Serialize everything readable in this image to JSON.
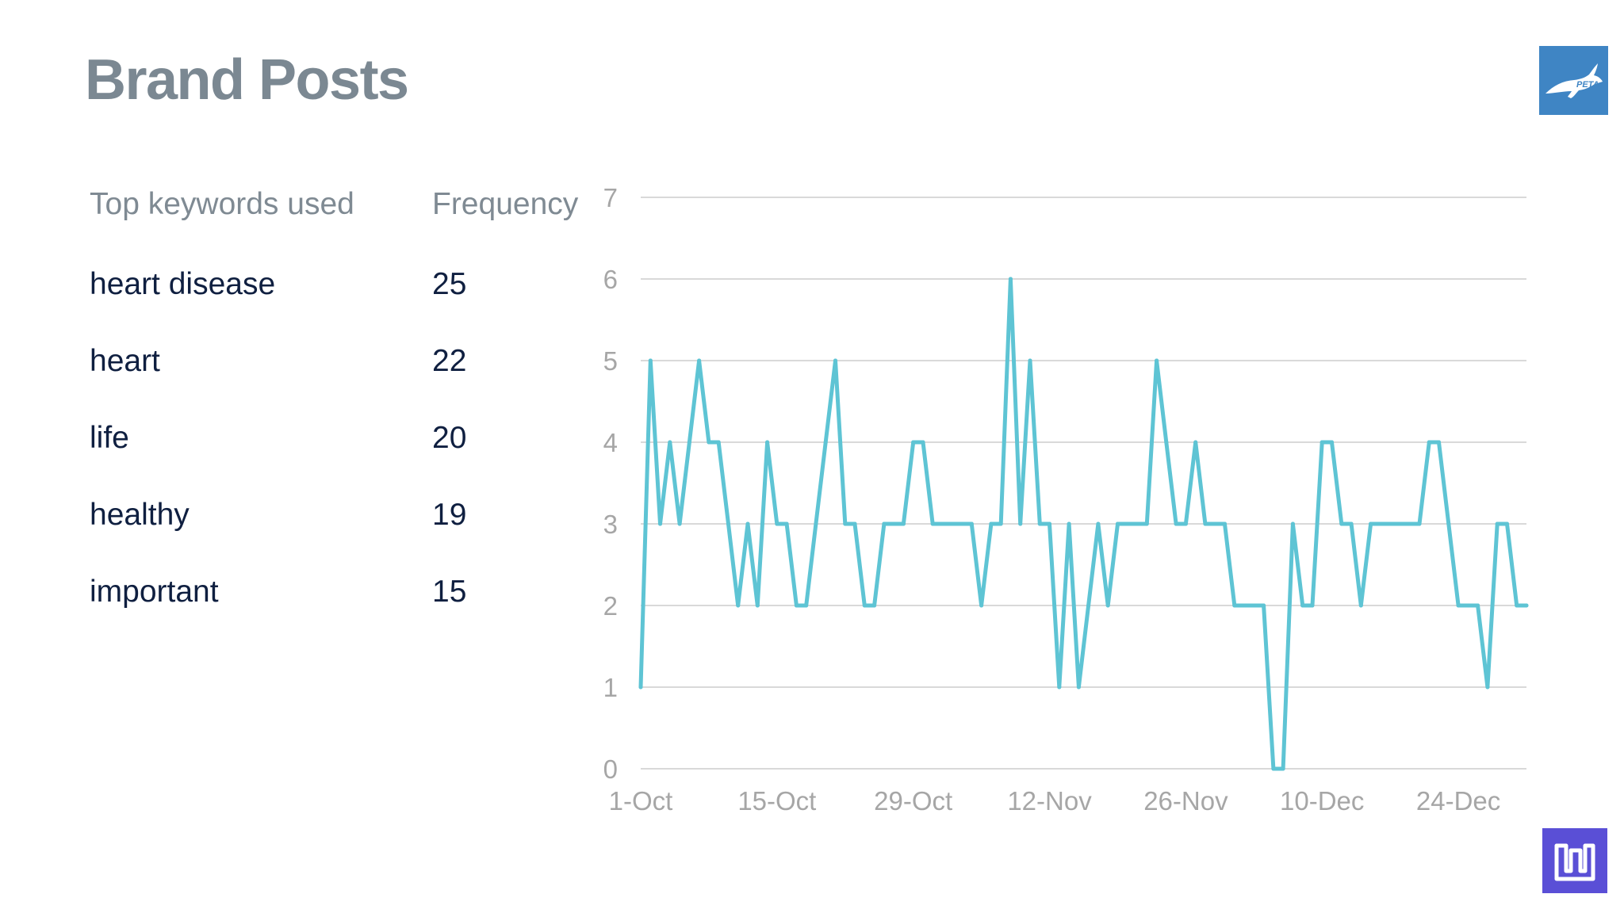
{
  "slide": {
    "title": "Brand Posts"
  },
  "keywords_table": {
    "header_keyword": "Top keywords used",
    "header_frequency": "Frequency",
    "rows": [
      {
        "keyword": "heart disease",
        "frequency": "25"
      },
      {
        "keyword": "heart",
        "frequency": "22"
      },
      {
        "keyword": "life",
        "frequency": "20"
      },
      {
        "keyword": "healthy",
        "frequency": "19"
      },
      {
        "keyword": "important",
        "frequency": "15"
      }
    ]
  },
  "logos": {
    "top_right_text": "PETA"
  },
  "colors": {
    "line": "#5ec4d4",
    "grid": "#d9d9d9",
    "axis_text": "#a6a6a6",
    "top_logo_bg": "#3f85c4",
    "bottom_logo_bg": "#5a4fd6"
  },
  "chart_data": {
    "type": "line",
    "title": "",
    "xlabel": "",
    "ylabel": "",
    "ylim": [
      0,
      7
    ],
    "yticks": [
      "0",
      "1",
      "2",
      "3",
      "4",
      "5",
      "6",
      "7"
    ],
    "xticks": [
      "1-Oct",
      "15-Oct",
      "29-Oct",
      "12-Nov",
      "26-Nov",
      "10-Dec",
      "24-Dec"
    ],
    "grid": true,
    "legend": "none",
    "x_start": "1-Oct",
    "x_end": "31-Dec",
    "series": [
      {
        "values": [
          1,
          5,
          3,
          4,
          3,
          4,
          5,
          4,
          4,
          3,
          2,
          3,
          2,
          4,
          3,
          3,
          2,
          2,
          3,
          4,
          5,
          3,
          3,
          2,
          2,
          3,
          3,
          3,
          4,
          4,
          3,
          3,
          3,
          3,
          3,
          2,
          3,
          3,
          6,
          3,
          5,
          3,
          3,
          1,
          3,
          1,
          2,
          3,
          2,
          3,
          3,
          3,
          3,
          5,
          4,
          3,
          3,
          4,
          3,
          3,
          3,
          2,
          2,
          2,
          2,
          0,
          0,
          3,
          2,
          2,
          4,
          4,
          3,
          3,
          2,
          3,
          3,
          3,
          3,
          3,
          3,
          4,
          4,
          3,
          2,
          2,
          2,
          1,
          3,
          3,
          2,
          2
        ]
      }
    ]
  }
}
